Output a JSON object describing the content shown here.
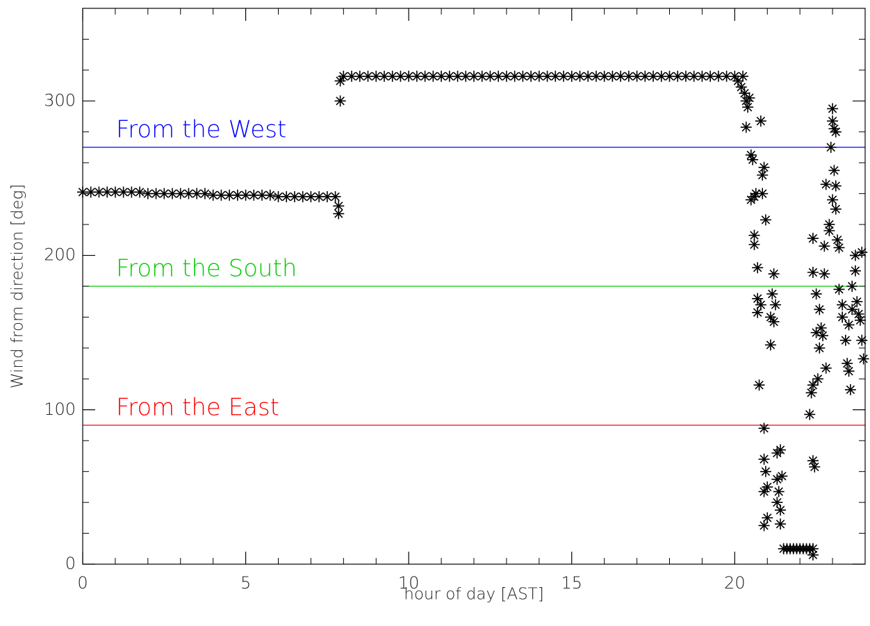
{
  "chart_data": {
    "type": "scatter",
    "x_label": "hour of day [AST]",
    "y_label": "Wind from direction [deg]",
    "xlim": [
      0,
      24
    ],
    "ylim": [
      0,
      360
    ],
    "xticks": [
      0,
      5,
      10,
      15,
      20
    ],
    "yticks": [
      0,
      100,
      200,
      300
    ],
    "xminorticks": [
      1,
      2,
      3,
      4,
      6,
      7,
      8,
      9,
      11,
      12,
      13,
      14,
      16,
      17,
      18,
      19,
      21,
      22,
      23
    ],
    "yminorticks": [
      20,
      40,
      60,
      80,
      120,
      140,
      160,
      180,
      220,
      240,
      260,
      280,
      320,
      340
    ],
    "grid": false,
    "color": "#000000",
    "reference_lines": [
      {
        "value": 270,
        "label": "From the West",
        "color": "#0000ff"
      },
      {
        "value": 180,
        "label": "From the South",
        "color": "#00cc00"
      },
      {
        "value": 90,
        "label": "From the East",
        "color": "#ff0000"
      }
    ],
    "x": [
      0,
      0.25,
      0.5,
      0.75,
      1,
      1.25,
      1.5,
      1.75,
      2,
      2.25,
      2.5,
      2.75,
      3,
      3.25,
      3.5,
      3.75,
      4,
      4.25,
      4.5,
      4.75,
      5,
      5.25,
      5.5,
      5.75,
      6,
      6.25,
      6.5,
      6.75,
      7,
      7.25,
      7.5,
      7.75,
      7.85,
      7.85,
      7.9,
      7.9,
      8,
      8.25,
      8.5,
      8.75,
      9,
      9.25,
      9.5,
      9.75,
      10,
      10.25,
      10.5,
      10.75,
      11,
      11.25,
      11.5,
      11.75,
      12,
      12.25,
      12.5,
      12.75,
      13,
      13.25,
      13.5,
      13.75,
      14,
      14.25,
      14.5,
      14.75,
      15,
      15.25,
      15.5,
      15.75,
      16,
      16.25,
      16.5,
      16.75,
      17,
      17.25,
      17.5,
      17.75,
      18,
      18.25,
      18.5,
      18.75,
      19,
      19.25,
      19.5,
      19.75,
      20,
      20.25,
      20.1,
      20.2,
      20.3,
      20.35,
      20.4,
      20.45,
      20.35,
      20.5,
      20.55,
      20.6,
      20.5,
      20.65,
      20.8,
      20.9,
      20.85,
      20.85,
      20.6,
      20.6,
      20.7,
      20.95,
      20.7,
      20.7,
      20.8,
      20.75,
      20.9,
      20.9,
      20.95,
      20.9,
      21,
      20.9,
      21,
      21.1,
      21.1,
      21.15,
      21.2,
      21.25,
      21.2,
      21.3,
      21.4,
      21.3,
      21.35,
      21.3,
      21.4,
      21.45,
      21.4,
      21.5,
      21.6,
      21.7,
      21.8,
      21.9,
      22,
      22.1,
      22.2,
      22.3,
      22.4,
      22.4,
      22.3,
      22.35,
      22.4,
      22.4,
      22.45,
      22.4,
      22.4,
      22.5,
      22.5,
      22.6,
      22.55,
      22.6,
      22.65,
      22.7,
      22.75,
      22.75,
      22.8,
      22.8,
      22.9,
      22.9,
      22.95,
      23,
      23,
      23.05,
      23.1,
      23.05,
      23.1,
      23,
      23.1,
      23.15,
      23.2,
      23.2,
      23.3,
      23.3,
      23.4,
      23.45,
      23.5,
      23.55,
      23.5,
      23.6,
      23.6,
      23.7,
      23.7,
      23.75,
      23.8,
      23.85,
      23.9,
      23.9,
      23.95
    ],
    "values": [
      241,
      241,
      241,
      241,
      241,
      241,
      241,
      241,
      240,
      240,
      240,
      240,
      240,
      240,
      240,
      240,
      239,
      239,
      239,
      239,
      239,
      239,
      239,
      239,
      238,
      238,
      238,
      238,
      238,
      238,
      238,
      238,
      232,
      227,
      300,
      313,
      316,
      316,
      316,
      316,
      316,
      316,
      316,
      316,
      316,
      316,
      316,
      316,
      316,
      316,
      316,
      316,
      316,
      316,
      316,
      316,
      316,
      316,
      316,
      316,
      316,
      316,
      316,
      316,
      316,
      316,
      316,
      316,
      316,
      316,
      316,
      316,
      316,
      316,
      316,
      316,
      316,
      316,
      316,
      316,
      316,
      316,
      316,
      316,
      316,
      316,
      313,
      309,
      305,
      300,
      296,
      302,
      283,
      265,
      262,
      238,
      236,
      240,
      287,
      257,
      252,
      240,
      213,
      207,
      192,
      223,
      172,
      163,
      168,
      116,
      88,
      68,
      60,
      47,
      50,
      25,
      30,
      160,
      142,
      175,
      188,
      168,
      157,
      72,
      74,
      55,
      47,
      40,
      35,
      57,
      26,
      10,
      10,
      10,
      10,
      10,
      10,
      10,
      10,
      10,
      10,
      6,
      97,
      111,
      116,
      67,
      63,
      211,
      189,
      175,
      150,
      140,
      120,
      165,
      153,
      148,
      206,
      188,
      246,
      127,
      220,
      216,
      270,
      287,
      295,
      282,
      280,
      255,
      245,
      236,
      230,
      210,
      205,
      178,
      168,
      160,
      145,
      130,
      125,
      113,
      155,
      165,
      180,
      200,
      190,
      170,
      162,
      158,
      202,
      145,
      133
    ]
  }
}
